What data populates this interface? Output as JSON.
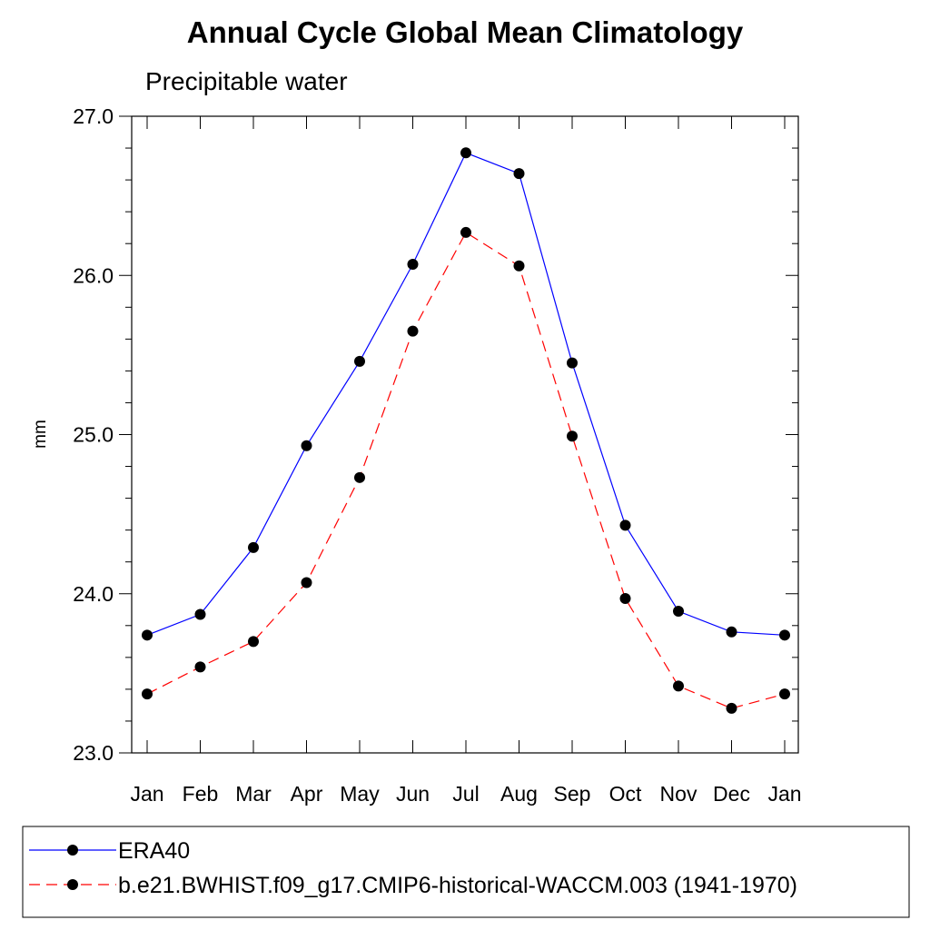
{
  "chart_data": {
    "type": "line",
    "title": "Annual Cycle Global Mean Climatology",
    "subtitle": "Precipitable water",
    "xlabel": "",
    "ylabel": "mm",
    "categories": [
      "Jan",
      "Feb",
      "Mar",
      "Apr",
      "May",
      "Jun",
      "Jul",
      "Aug",
      "Sep",
      "Oct",
      "Nov",
      "Dec",
      "Jan"
    ],
    "ylim": [
      23.0,
      27.0
    ],
    "yticks": [
      "23.0",
      "24.0",
      "25.0",
      "26.0",
      "27.0"
    ],
    "grid": false,
    "legend_position": "bottom",
    "series": [
      {
        "name": "ERA40",
        "color": "#0000ff",
        "dash": "solid",
        "marker": "filled-circle",
        "values": [
          23.74,
          23.87,
          24.29,
          24.93,
          25.46,
          26.07,
          26.77,
          26.64,
          25.45,
          24.43,
          23.89,
          23.76,
          23.74
        ]
      },
      {
        "name": "b.e21.BWHIST.f09_g17.CMIP6-historical-WACCM.003 (1941-1970)",
        "color": "#ff0000",
        "dash": "dashed",
        "marker": "filled-circle",
        "values": [
          23.37,
          23.54,
          23.7,
          24.07,
          24.73,
          25.65,
          26.27,
          26.06,
          24.99,
          23.97,
          23.42,
          23.28,
          23.37
        ]
      }
    ]
  }
}
